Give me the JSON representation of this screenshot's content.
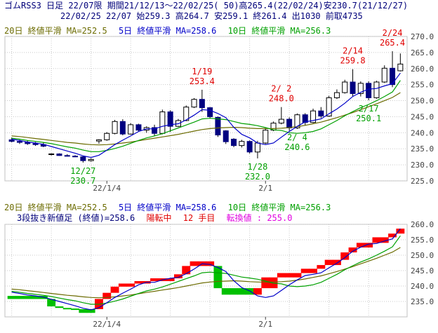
{
  "header": {
    "line1": "ゴムRSS3 日足 22/07限 期間21/12/13～22/02/25( 50)高265.4(22/02/24)安230.7(21/12/27)",
    "line2": "22/02/25 22/07 始259.3 高264.7 安259.1 終261.4 出1030 前取4735"
  },
  "legend_top": {
    "ma20": "20日 終値平滑 MA=252.5",
    "ma5": "5日 終値平滑 MA=258.6",
    "ma10": "10日 終値平滑 MA=256.3"
  },
  "legend_bottom": {
    "ma20": "20日 終値平滑 MA=252.5",
    "ma5": "5日 終値平滑 MA=258.6",
    "ma10": "10日 終値平滑 MA=256.3"
  },
  "status_bottom": {
    "kind": "3段抜き新値足 (終値)=258.6",
    "trend": "陽転中",
    "count": "12 手目",
    "reversal": "転換値 : 255.0"
  },
  "colors": {
    "up_candle": "#ffffff",
    "down_candle": "#000080",
    "ma5": "#0000c8",
    "ma10": "#00a000",
    "ma20": "#6b6b00",
    "brick_up": "#ff0000",
    "brick_down": "#00c000",
    "high_label": "#e00000",
    "low_label": "#00a000"
  },
  "chart_data": [
    {
      "type": "candlestick",
      "y_range": [
        225,
        270
      ],
      "y_ticks": [
        "225.0",
        "230.0",
        "235.0",
        "240.0",
        "245.0",
        "250.0",
        "255.0",
        "260.0",
        "265.0",
        "270.0"
      ],
      "x_tick_labels": [
        "22/1/4",
        "2/1"
      ],
      "candles": [
        {
          "o": 237.8,
          "h": 238.5,
          "l": 237.0,
          "c": 237.3
        },
        {
          "o": 237.3,
          "h": 237.8,
          "l": 236.5,
          "c": 237.0
        },
        {
          "o": 237.0,
          "h": 237.6,
          "l": 236.2,
          "c": 236.6
        },
        {
          "o": 236.6,
          "h": 237.1,
          "l": 235.9,
          "c": 236.3
        },
        {
          "o": 236.3,
          "h": 236.9,
          "l": 235.5,
          "c": 235.8
        },
        {
          "o": 233.2,
          "h": 233.6,
          "l": 232.9,
          "c": 233.4
        },
        {
          "o": 233.4,
          "h": 233.6,
          "l": 232.8,
          "c": 232.9
        },
        {
          "o": 232.9,
          "h": 233.3,
          "l": 232.6,
          "c": 232.7
        },
        {
          "o": 232.7,
          "h": 233.0,
          "l": 232.4,
          "c": 232.5
        },
        {
          "o": 232.5,
          "h": 232.7,
          "l": 230.7,
          "c": 231.3
        },
        {
          "o": 231.3,
          "h": 232.0,
          "l": 231.0,
          "c": 231.7
        },
        {
          "o": 237.4,
          "h": 238.0,
          "l": 236.6,
          "c": 237.8
        },
        {
          "o": 237.8,
          "h": 240.2,
          "l": 237.5,
          "c": 239.8
        },
        {
          "o": 239.8,
          "h": 244.0,
          "l": 239.5,
          "c": 243.5
        },
        {
          "o": 243.5,
          "h": 244.2,
          "l": 239.2,
          "c": 239.6
        },
        {
          "o": 239.6,
          "h": 243.0,
          "l": 239.4,
          "c": 242.5
        },
        {
          "o": 242.5,
          "h": 242.8,
          "l": 240.3,
          "c": 240.8
        },
        {
          "o": 240.8,
          "h": 242.0,
          "l": 240.0,
          "c": 241.6
        },
        {
          "o": 241.6,
          "h": 242.5,
          "l": 239.0,
          "c": 239.8
        },
        {
          "o": 239.8,
          "h": 247.2,
          "l": 239.5,
          "c": 246.5
        },
        {
          "o": 246.5,
          "h": 247.0,
          "l": 240.2,
          "c": 242.0
        },
        {
          "o": 242.0,
          "h": 244.3,
          "l": 241.8,
          "c": 243.8
        },
        {
          "o": 243.8,
          "h": 248.5,
          "l": 243.6,
          "c": 248.0
        },
        {
          "o": 248.0,
          "h": 250.8,
          "l": 247.7,
          "c": 250.4
        },
        {
          "o": 250.4,
          "h": 253.4,
          "l": 246.5,
          "c": 247.8
        },
        {
          "o": 247.8,
          "h": 248.0,
          "l": 244.6,
          "c": 245.0
        },
        {
          "o": 244.8,
          "h": 245.1,
          "l": 238.7,
          "c": 239.3
        },
        {
          "o": 240.6,
          "h": 240.8,
          "l": 236.5,
          "c": 237.2
        },
        {
          "o": 238.0,
          "h": 238.3,
          "l": 235.5,
          "c": 236.0
        },
        {
          "o": 236.0,
          "h": 237.8,
          "l": 235.4,
          "c": 237.3
        },
        {
          "o": 237.3,
          "h": 237.6,
          "l": 233.5,
          "c": 234.0
        },
        {
          "o": 234.0,
          "h": 237.5,
          "l": 232.0,
          "c": 236.8
        },
        {
          "o": 236.8,
          "h": 241.5,
          "l": 236.5,
          "c": 240.8
        },
        {
          "o": 240.8,
          "h": 243.5,
          "l": 240.5,
          "c": 243.0
        },
        {
          "o": 243.0,
          "h": 248.0,
          "l": 242.6,
          "c": 244.2
        },
        {
          "o": 244.2,
          "h": 244.8,
          "l": 240.6,
          "c": 241.5
        },
        {
          "o": 241.5,
          "h": 246.0,
          "l": 241.2,
          "c": 245.6
        },
        {
          "o": 245.6,
          "h": 246.1,
          "l": 242.3,
          "c": 243.2
        },
        {
          "o": 243.2,
          "h": 247.5,
          "l": 243.0,
          "c": 246.8
        },
        {
          "o": 246.8,
          "h": 248.0,
          "l": 244.6,
          "c": 245.2
        },
        {
          "o": 245.2,
          "h": 251.5,
          "l": 245.0,
          "c": 250.9
        },
        {
          "o": 250.9,
          "h": 253.5,
          "l": 250.5,
          "c": 252.5
        },
        {
          "o": 252.5,
          "h": 256.5,
          "l": 252.2,
          "c": 255.8
        },
        {
          "o": 255.8,
          "h": 259.8,
          "l": 251.4,
          "c": 252.2
        },
        {
          "o": 252.2,
          "h": 256.0,
          "l": 251.3,
          "c": 255.4
        },
        {
          "o": 255.4,
          "h": 256.0,
          "l": 250.1,
          "c": 250.9
        },
        {
          "o": 250.9,
          "h": 256.2,
          "l": 250.6,
          "c": 255.8
        },
        {
          "o": 255.8,
          "h": 261.0,
          "l": 255.5,
          "c": 260.1
        },
        {
          "o": 260.1,
          "h": 265.4,
          "l": 254.2,
          "c": 255.0
        },
        {
          "o": 259.3,
          "h": 264.7,
          "l": 259.1,
          "c": 261.4
        }
      ],
      "ma5": [
        238.0,
        237.6,
        237.1,
        236.8,
        236.4,
        235.7,
        235.0,
        234.3,
        233.6,
        232.8,
        232.3,
        233.0,
        234.6,
        236.3,
        237.7,
        239.0,
        240.4,
        241.2,
        241.2,
        242.0,
        242.5,
        242.8,
        244.0,
        245.5,
        247.2,
        247.0,
        246.0,
        244.7,
        241.7,
        239.5,
        238.4,
        236.8,
        236.3,
        236.8,
        238.6,
        240.4,
        242.0,
        243.4,
        243.8,
        244.3,
        245.9,
        247.4,
        249.2,
        251.3,
        252.6,
        253.6,
        253.8,
        254.6,
        255.3,
        258.6
      ],
      "ma10": [
        238.3,
        238.0,
        237.6,
        237.3,
        237.0,
        236.6,
        236.1,
        235.6,
        235.2,
        234.6,
        234.1,
        234.1,
        234.5,
        235.1,
        235.8,
        236.7,
        237.6,
        238.4,
        239.0,
        239.7,
        240.6,
        241.5,
        242.4,
        243.3,
        244.3,
        244.5,
        244.3,
        244.1,
        243.5,
        242.9,
        242.6,
        242.2,
        241.6,
        240.9,
        240.7,
        240.0,
        239.8,
        240.0,
        240.4,
        241.2,
        242.5,
        243.8,
        245.3,
        246.6,
        247.8,
        248.8,
        250.0,
        251.3,
        252.7,
        256.3
      ],
      "ma20": [
        239.0,
        238.8,
        238.5,
        238.2,
        237.9,
        237.6,
        237.3,
        237.0,
        236.8,
        236.5,
        236.3,
        236.2,
        236.3,
        236.5,
        236.8,
        237.1,
        237.5,
        237.9,
        238.3,
        238.7,
        239.1,
        239.5,
        240.0,
        240.5,
        241.0,
        241.3,
        241.5,
        241.6,
        241.7,
        241.6,
        241.4,
        241.3,
        241.3,
        241.3,
        241.4,
        241.6,
        241.9,
        242.3,
        242.8,
        243.3,
        244.0,
        244.7,
        245.5,
        246.3,
        247.2,
        248.1,
        249.0,
        250.0,
        251.0,
        252.5
      ],
      "annotations": [
        {
          "index": 9,
          "date": "12/27",
          "value": "230.7",
          "kind": "low"
        },
        {
          "index": 24,
          "date": "1/19",
          "value": "253.4",
          "kind": "high"
        },
        {
          "index": 31,
          "date": "1/28",
          "value": "232.0",
          "kind": "low"
        },
        {
          "index": 34,
          "date": "2/ 2",
          "value": "248.0",
          "kind": "high"
        },
        {
          "index": 36,
          "date": "2/ 4",
          "value": "240.6",
          "kind": "low"
        },
        {
          "index": 43,
          "date": "2/14",
          "value": "259.8",
          "kind": "high"
        },
        {
          "index": 45,
          "date": "2/17",
          "value": "250.1",
          "kind": "low"
        },
        {
          "index": 48,
          "date": "2/24",
          "value": "265.4",
          "kind": "high"
        }
      ]
    },
    {
      "type": "three-line-break",
      "y_range": [
        230,
        260
      ],
      "y_ticks": [
        "235.0",
        "240.0",
        "245.0",
        "250.0",
        "255.0",
        "260.0"
      ],
      "x_tick_labels": [
        "22/1/4",
        "2/1"
      ],
      "bricks": [
        {
          "lo": 235.8,
          "hi": 236.8,
          "dir": "down"
        },
        {
          "lo": 235.8,
          "hi": 236.8,
          "dir": "down"
        },
        {
          "lo": 235.8,
          "hi": 236.8,
          "dir": "down"
        },
        {
          "lo": 235.8,
          "hi": 236.8,
          "dir": "down"
        },
        {
          "lo": 235.8,
          "hi": 236.8,
          "dir": "down"
        },
        {
          "lo": 233.4,
          "hi": 235.8,
          "dir": "down"
        },
        {
          "lo": 232.9,
          "hi": 233.4,
          "dir": "down"
        },
        {
          "lo": 232.7,
          "hi": 232.9,
          "dir": "down"
        },
        {
          "lo": 232.5,
          "hi": 232.7,
          "dir": "down"
        },
        {
          "lo": 231.3,
          "hi": 232.5,
          "dir": "down"
        },
        {
          "lo": 231.3,
          "hi": 232.5,
          "dir": "down"
        },
        {
          "lo": 232.5,
          "hi": 235.8,
          "dir": "up"
        },
        {
          "lo": 235.8,
          "hi": 237.8,
          "dir": "up"
        },
        {
          "lo": 237.8,
          "hi": 239.8,
          "dir": "up"
        },
        {
          "lo": 239.8,
          "hi": 240.8,
          "dir": "up"
        },
        {
          "lo": 239.8,
          "hi": 240.8,
          "dir": "up"
        },
        {
          "lo": 240.8,
          "hi": 241.6,
          "dir": "up"
        },
        {
          "lo": 240.8,
          "hi": 241.6,
          "dir": "up"
        },
        {
          "lo": 241.6,
          "hi": 242.5,
          "dir": "up"
        },
        {
          "lo": 241.6,
          "hi": 242.5,
          "dir": "up"
        },
        {
          "lo": 241.6,
          "hi": 242.5,
          "dir": "up"
        },
        {
          "lo": 242.5,
          "hi": 243.8,
          "dir": "up"
        },
        {
          "lo": 243.8,
          "hi": 246.5,
          "dir": "up"
        },
        {
          "lo": 246.5,
          "hi": 248.0,
          "dir": "up"
        },
        {
          "lo": 246.5,
          "hi": 248.0,
          "dir": "up"
        },
        {
          "lo": 246.5,
          "hi": 248.0,
          "dir": "up"
        },
        {
          "lo": 239.3,
          "hi": 246.5,
          "dir": "down"
        },
        {
          "lo": 237.2,
          "hi": 239.3,
          "dir": "down"
        },
        {
          "lo": 237.2,
          "hi": 239.3,
          "dir": "down"
        },
        {
          "lo": 237.2,
          "hi": 239.3,
          "dir": "down"
        },
        {
          "lo": 237.2,
          "hi": 239.3,
          "dir": "down"
        },
        {
          "lo": 237.2,
          "hi": 239.3,
          "dir": "up"
        },
        {
          "lo": 239.3,
          "hi": 242.8,
          "dir": "up"
        },
        {
          "lo": 239.3,
          "hi": 242.8,
          "dir": "up"
        },
        {
          "lo": 242.8,
          "hi": 244.2,
          "dir": "up"
        },
        {
          "lo": 242.8,
          "hi": 244.2,
          "dir": "up"
        },
        {
          "lo": 242.8,
          "hi": 244.2,
          "dir": "up"
        },
        {
          "lo": 244.2,
          "hi": 245.6,
          "dir": "up"
        },
        {
          "lo": 244.2,
          "hi": 245.6,
          "dir": "up"
        },
        {
          "lo": 245.6,
          "hi": 246.8,
          "dir": "up"
        },
        {
          "lo": 246.8,
          "hi": 248.5,
          "dir": "up"
        },
        {
          "lo": 246.8,
          "hi": 248.5,
          "dir": "up"
        },
        {
          "lo": 248.5,
          "hi": 250.9,
          "dir": "up"
        },
        {
          "lo": 250.9,
          "hi": 252.5,
          "dir": "up"
        },
        {
          "lo": 252.5,
          "hi": 254.0,
          "dir": "up"
        },
        {
          "lo": 252.5,
          "hi": 254.0,
          "dir": "up"
        },
        {
          "lo": 254.0,
          "hi": 255.8,
          "dir": "up"
        },
        {
          "lo": 254.0,
          "hi": 255.8,
          "dir": "up"
        },
        {
          "lo": 255.8,
          "hi": 257.0,
          "dir": "up"
        },
        {
          "lo": 257.0,
          "hi": 258.6,
          "dir": "up"
        }
      ],
      "ma5": [
        238.0,
        237.6,
        237.1,
        236.8,
        236.4,
        235.7,
        235.0,
        234.3,
        233.6,
        232.8,
        232.3,
        233.0,
        234.6,
        236.3,
        237.7,
        239.0,
        240.4,
        241.2,
        241.2,
        242.0,
        242.5,
        242.8,
        244.0,
        245.5,
        247.2,
        247.0,
        246.0,
        244.7,
        241.7,
        239.5,
        238.4,
        236.8,
        236.3,
        236.8,
        238.6,
        240.4,
        242.0,
        243.4,
        243.8,
        244.3,
        245.9,
        247.4,
        249.2,
        251.3,
        252.6,
        253.6,
        253.8,
        254.6,
        255.3,
        258.6
      ],
      "ma10": [
        238.3,
        238.0,
        237.6,
        237.3,
        237.0,
        236.6,
        236.1,
        235.6,
        235.2,
        234.6,
        234.1,
        234.1,
        234.5,
        235.1,
        235.8,
        236.7,
        237.6,
        238.4,
        239.0,
        239.7,
        240.6,
        241.5,
        242.4,
        243.3,
        244.3,
        244.5,
        244.3,
        244.1,
        243.5,
        242.9,
        242.6,
        242.2,
        241.6,
        240.9,
        240.7,
        240.0,
        239.8,
        240.0,
        240.4,
        241.2,
        242.5,
        243.8,
        245.3,
        246.6,
        247.8,
        248.8,
        250.0,
        251.3,
        252.7,
        256.3
      ],
      "ma20": [
        239.0,
        238.8,
        238.5,
        238.2,
        237.9,
        237.6,
        237.3,
        237.0,
        236.8,
        236.5,
        236.3,
        236.2,
        236.3,
        236.5,
        236.8,
        237.1,
        237.5,
        237.9,
        238.3,
        238.7,
        239.1,
        239.5,
        240.0,
        240.5,
        241.0,
        241.3,
        241.5,
        241.6,
        241.7,
        241.6,
        241.4,
        241.3,
        241.3,
        241.3,
        241.4,
        241.6,
        241.9,
        242.3,
        242.8,
        243.3,
        244.0,
        244.7,
        245.5,
        246.3,
        247.2,
        248.1,
        249.0,
        250.0,
        251.0,
        252.5
      ]
    }
  ]
}
